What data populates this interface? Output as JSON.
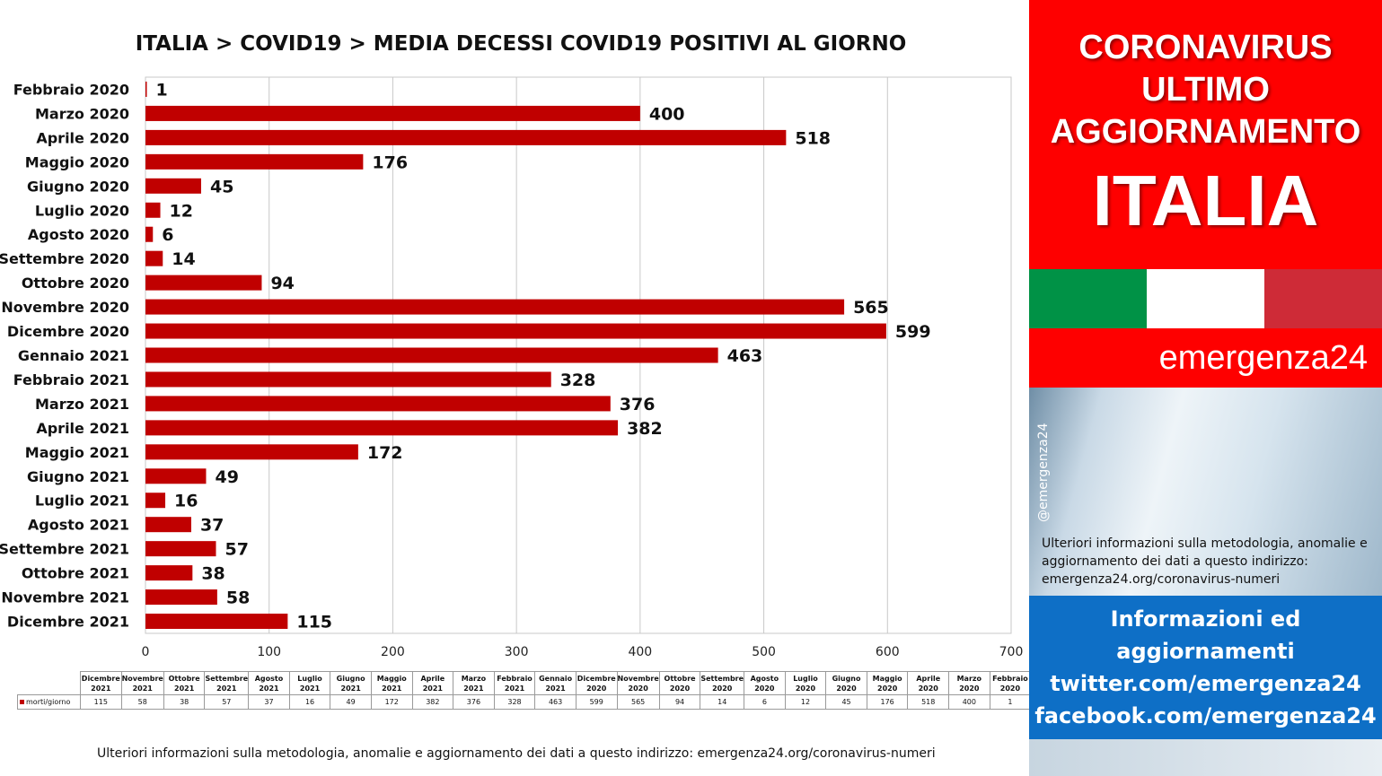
{
  "chart_data": {
    "type": "bar",
    "orientation": "horizontal",
    "title": "ITALIA >  COVID19 > MEDIA DECESSI COVID19 POSITIVI AL GIORNO",
    "categories": [
      "Febbraio 2020",
      "Marzo 2020",
      "Aprile 2020",
      "Maggio 2020",
      "Giugno 2020",
      "Luglio 2020",
      "Agosto 2020",
      "Settembre 2020",
      "Ottobre 2020",
      "Novembre 2020",
      "Dicembre 2020",
      "Gennaio 2021",
      "Febbraio 2021",
      "Marzo 2021",
      "Aprile 2021",
      "Maggio 2021",
      "Giugno 2021",
      "Luglio 2021",
      "Agosto 2021",
      "Settembre 2021",
      "Ottobre 2021",
      "Novembre 2021",
      "Dicembre 2021"
    ],
    "series": [
      {
        "name": "morti/giorno",
        "color": "#c00000",
        "values": [
          1,
          400,
          518,
          176,
          45,
          12,
          6,
          14,
          94,
          565,
          599,
          463,
          328,
          376,
          382,
          172,
          49,
          16,
          37,
          57,
          38,
          58,
          115
        ]
      }
    ],
    "xlim": [
      0,
      700
    ],
    "xticks": [
      0,
      100,
      200,
      300,
      400,
      500,
      600,
      700
    ],
    "grid": true,
    "data_table": {
      "columns": [
        [
          "Dicembre",
          "2021"
        ],
        [
          "Novembre",
          "2021"
        ],
        [
          "Ottobre",
          "2021"
        ],
        [
          "Settembre",
          "2021"
        ],
        [
          "Agosto",
          "2021"
        ],
        [
          "Luglio",
          "2021"
        ],
        [
          "Giugno",
          "2021"
        ],
        [
          "Maggio",
          "2021"
        ],
        [
          "Aprile",
          "2021"
        ],
        [
          "Marzo",
          "2021"
        ],
        [
          "Febbraio",
          "2021"
        ],
        [
          "Gennaio",
          "2021"
        ],
        [
          "Dicembre",
          "2020"
        ],
        [
          "Novembre",
          "2020"
        ],
        [
          "Ottobre",
          "2020"
        ],
        [
          "Settembre",
          "2020"
        ],
        [
          "Agosto",
          "2020"
        ],
        [
          "Luglio",
          "2020"
        ],
        [
          "Giugno",
          "2020"
        ],
        [
          "Maggio",
          "2020"
        ],
        [
          "Aprile",
          "2020"
        ],
        [
          "Marzo",
          "2020"
        ],
        [
          "Febbraio",
          "2020"
        ]
      ],
      "row_label": "morti/giorno",
      "values": [
        "115",
        "58",
        "38",
        "57",
        "37",
        "16",
        "49",
        "172",
        "382",
        "376",
        "328",
        "463",
        "599",
        "565",
        "94",
        "14",
        "6",
        "12",
        "45",
        "176",
        "518",
        "400",
        "1"
      ]
    }
  },
  "footnote": "Ulteriori informazioni sulla metodologia, anomalie e aggiornamento dei dati a questo indirizzo: emergenza24.org/coronavirus-numeri",
  "panel": {
    "banner_line1": "CORONAVIRUS",
    "banner_line2": "ULTIMO",
    "banner_line3": "AGGIORNAMENTO",
    "banner_country": "ITALIA",
    "brand": "emergenza24",
    "handle": "@emergenza24",
    "note": "Ulteriori informazioni sulla metodologia, anomalie e aggiornamento dei dati a questo indirizzo: emergenza24.org/coronavirus-numeri",
    "info_line1": "Informazioni ed",
    "info_line2": "aggiornamenti",
    "info_line3": "twitter.com/emergenza24",
    "info_line4": "facebook.com/emergenza24"
  },
  "colors": {
    "bar": "#c00000",
    "panel_red": "#fe0000",
    "info_blue": "#0e6fc6",
    "flag_green": "#009246",
    "flag_white": "#ffffff",
    "flag_red": "#ce2b37"
  }
}
